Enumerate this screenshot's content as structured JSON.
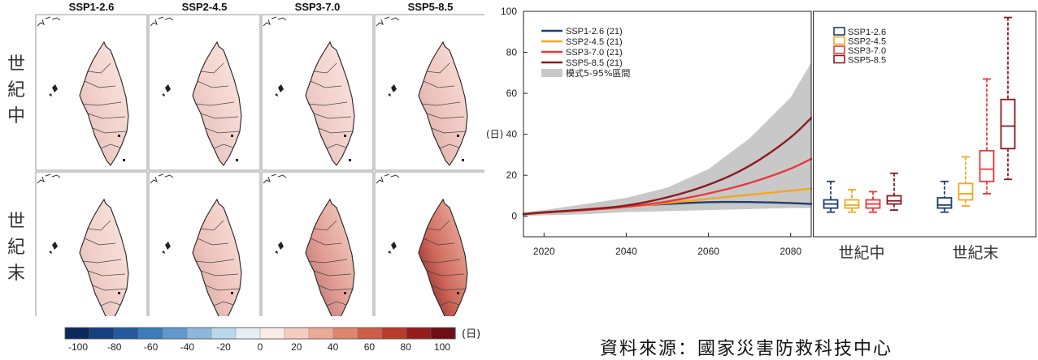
{
  "chart_data": [
    {
      "type": "heatmap",
      "columns": [
        "SSP1-2.6",
        "SSP2-4.5",
        "SSP3-7.0",
        "SSP5-8.5"
      ],
      "rows": [
        "世紀中",
        "世紀末"
      ],
      "panels_max_change": [
        [
          20,
          20,
          20,
          30
        ],
        [
          20,
          30,
          60,
          100
        ]
      ],
      "colorbar": {
        "ticks": [
          "-100",
          "-80",
          "-60",
          "-40",
          "-20",
          "0",
          "20",
          "40",
          "60",
          "80",
          "100"
        ],
        "unit": "(日)",
        "colors": [
          "#0b2a5b",
          "#163f7d",
          "#245b9c",
          "#3b7cb8",
          "#6299cb",
          "#8db7db",
          "#bcd6ea",
          "#e6eef5",
          "#fbeae6",
          "#f6ccc1",
          "#ecaa98",
          "#df8670",
          "#cc5f4a",
          "#b63c2e",
          "#931e1c",
          "#6d0e16"
        ]
      }
    },
    {
      "type": "line",
      "x_ticks": [
        "2020",
        "2040",
        "2060",
        "2080"
      ],
      "xlim": [
        2015,
        2085
      ],
      "ylim": [
        -10,
        100
      ],
      "y_ticks": [
        "0",
        "20",
        "40",
        "60",
        "80",
        "100"
      ],
      "ylabel": "(日)",
      "series": [
        {
          "name": "SSP1-2.6 (21)",
          "color": "#1f3f6e",
          "x": [
            2015,
            2020,
            2030,
            2040,
            2050,
            2060,
            2070,
            2080,
            2085
          ],
          "y": [
            1,
            2,
            3,
            5,
            6,
            7,
            7,
            6.5,
            6
          ]
        },
        {
          "name": "SSP2-4.5 (21)",
          "color": "#f5a623",
          "x": [
            2015,
            2020,
            2030,
            2040,
            2050,
            2060,
            2070,
            2080,
            2085
          ],
          "y": [
            1,
            1.8,
            3,
            4.5,
            6.5,
            8.5,
            10.5,
            12.5,
            13.5
          ]
        },
        {
          "name": "SSP3-7.0 (21)",
          "color": "#e8383d",
          "x": [
            2015,
            2020,
            2030,
            2040,
            2050,
            2060,
            2070,
            2080,
            2085
          ],
          "y": [
            1,
            1.8,
            3,
            4.5,
            7,
            11,
            16,
            23,
            28
          ]
        },
        {
          "name": "SSP5-8.5 (21)",
          "color": "#8b1a1f",
          "x": [
            2015,
            2020,
            2030,
            2040,
            2050,
            2060,
            2070,
            2080,
            2085
          ],
          "y": [
            1,
            2,
            3.2,
            5,
            9,
            15,
            24,
            38,
            48
          ]
        }
      ],
      "band": {
        "name": "模式5-95%區間",
        "color": "#c8c8c8",
        "x": [
          2015,
          2020,
          2030,
          2040,
          2050,
          2060,
          2070,
          2080,
          2085
        ],
        "upper": [
          2,
          3,
          6,
          9,
          14,
          23,
          38,
          58,
          75
        ],
        "lower": [
          0,
          0.5,
          1,
          2,
          2.5,
          3,
          3.5,
          4,
          4
        ]
      }
    },
    {
      "type": "box",
      "groups": [
        "世紀中",
        "世紀末"
      ],
      "legend": [
        "SSP1-2.6",
        "SSP2-4.5",
        "SSP3-7.0",
        "SSP5-8.5"
      ],
      "colors": [
        "#1f3f6e",
        "#f5a623",
        "#e8383d",
        "#8b1a1f"
      ],
      "ylim": [
        -10,
        100
      ],
      "boxes": [
        [
          {
            "min": 2,
            "q1": 4,
            "median": 6,
            "q3": 8,
            "max": 17
          },
          {
            "min": 2,
            "q1": 4,
            "median": 5.5,
            "q3": 8,
            "max": 13
          },
          {
            "min": 2,
            "q1": 4,
            "median": 6,
            "q3": 8,
            "max": 12
          },
          {
            "min": 3,
            "q1": 6,
            "median": 7.5,
            "q3": 10,
            "max": 21
          }
        ],
        [
          {
            "min": 2,
            "q1": 4,
            "median": 5.5,
            "q3": 9,
            "max": 17
          },
          {
            "min": 5,
            "q1": 8,
            "median": 11,
            "q3": 16,
            "max": 29
          },
          {
            "min": 11,
            "q1": 17,
            "median": 23,
            "q3": 32,
            "max": 67
          },
          {
            "min": 18,
            "q1": 33,
            "median": 44,
            "q3": 57,
            "max": 97
          }
        ]
      ]
    }
  ],
  "source": "資料來源：國家災害防救科技中心"
}
